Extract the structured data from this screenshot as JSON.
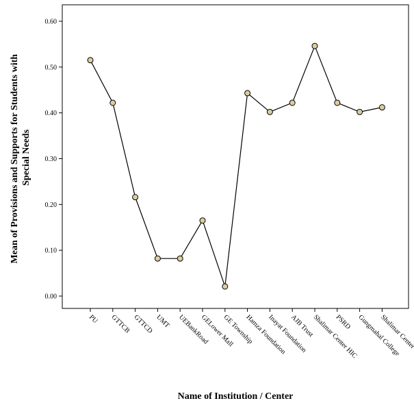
{
  "chart_data": {
    "type": "line",
    "title": "",
    "xlabel": "Name of Institution / Center",
    "ylabel_lines": [
      "Mean of Provisions and Supports for Students with",
      "Special Needs"
    ],
    "ylim": [
      0,
      0.6
    ],
    "yticks": [
      "0.00",
      "0.10",
      "0.20",
      "0.30",
      "0.40",
      "0.50",
      "0.60"
    ],
    "grid": false,
    "legend": "none",
    "categories": [
      "PU",
      "GTTCB",
      "GTTCD",
      "UMT",
      "UEBankRoad",
      "GELower Mall",
      "GE Township",
      "Hamza Foundation",
      "Inayat Foundation",
      "AJB Trust",
      "Shalimar Center HIC",
      "PSRD",
      "Gungmahal College",
      "Shalimar Center"
    ],
    "series": [
      {
        "values": [
          0.515,
          0.422,
          0.216,
          0.082,
          0.082,
          0.165,
          0.021,
          0.443,
          0.402,
          0.422,
          0.546,
          0.422,
          0.402,
          0.412
        ]
      }
    ],
    "colors": {
      "marker_fill": "#d9cda0",
      "line": "#000000",
      "axis": "#000000"
    }
  }
}
